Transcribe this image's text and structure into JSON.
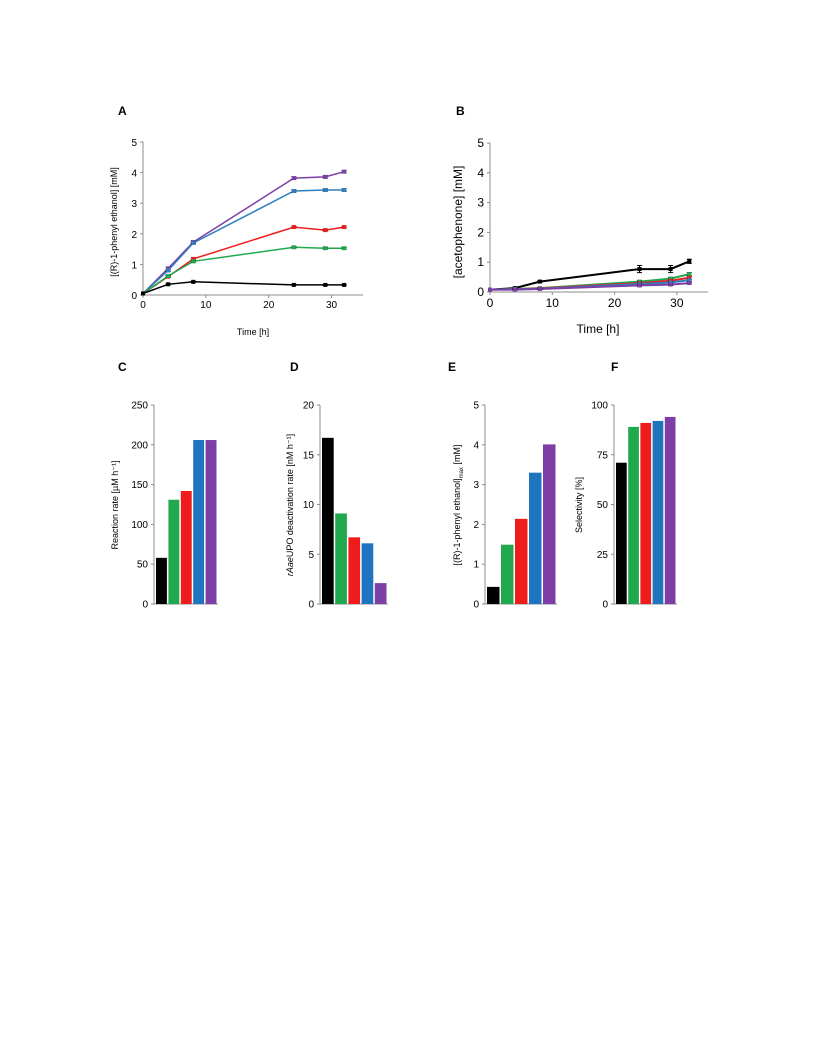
{
  "colors": {
    "black": "#000000",
    "green": "#1fa84e",
    "red": "#ee1c1c",
    "blue": "#1f74c0",
    "purple": "#7d3fa6",
    "line_blue": "#2e7fbf",
    "axis": "#8c8c8c"
  },
  "chart_data": [
    {
      "panel": "A",
      "type": "line",
      "xlabel": "Time [h]",
      "ylabel": "[(R)-1-phenyl ethanol] [mM]",
      "xlim": [
        0,
        35
      ],
      "ylim": [
        0,
        5
      ],
      "xticks": [
        "0",
        "10",
        "20",
        "30"
      ],
      "yticks": [
        "0",
        "1",
        "2",
        "3",
        "4",
        "5"
      ],
      "series": [
        {
          "color": "purple",
          "x": [
            0,
            4,
            8,
            24,
            29,
            32
          ],
          "y": [
            0.05,
            0.87,
            1.73,
            3.82,
            3.86,
            4.03
          ],
          "err": [
            0,
            0.04,
            0.04,
            0.04,
            0.04,
            0.04
          ]
        },
        {
          "color": "line_blue",
          "x": [
            0,
            4,
            8,
            24,
            29,
            32
          ],
          "y": [
            0.05,
            0.8,
            1.7,
            3.4,
            3.43,
            3.43
          ],
          "err": [
            0,
            0.03,
            0.03,
            0.04,
            0.04,
            0.04
          ]
        },
        {
          "color": "red",
          "x": [
            0,
            4,
            8,
            24,
            29,
            32
          ],
          "y": [
            0.05,
            0.6,
            1.18,
            2.22,
            2.12,
            2.22
          ],
          "err": [
            0,
            0.03,
            0.03,
            0.03,
            0.03,
            0.03
          ]
        },
        {
          "color": "green",
          "x": [
            0,
            4,
            8,
            24,
            29,
            32
          ],
          "y": [
            0.05,
            0.62,
            1.1,
            1.56,
            1.53,
            1.53
          ],
          "err": [
            0,
            0.03,
            0.03,
            0.03,
            0.03,
            0.03
          ]
        },
        {
          "color": "black",
          "x": [
            0,
            4,
            8,
            24,
            29,
            32
          ],
          "y": [
            0.05,
            0.35,
            0.43,
            0.33,
            0.33,
            0.33
          ],
          "err": [
            0,
            0.02,
            0.02,
            0.02,
            0.02,
            0.02
          ]
        }
      ]
    },
    {
      "panel": "B",
      "type": "line",
      "xlabel": "Time [h]",
      "ylabel": "[acetophenone] [mM]",
      "xlim": [
        0,
        35
      ],
      "ylim": [
        0,
        5
      ],
      "xticks": [
        "0",
        "10",
        "20",
        "30"
      ],
      "yticks": [
        "0",
        "1",
        "2",
        "3",
        "4",
        "5"
      ],
      "series": [
        {
          "color": "black",
          "x": [
            0,
            4,
            8,
            24,
            29,
            32
          ],
          "y": [
            0.08,
            0.13,
            0.35,
            0.77,
            0.77,
            1.03
          ],
          "err": [
            0,
            0.03,
            0.03,
            0.12,
            0.12,
            0.07
          ]
        },
        {
          "color": "green",
          "x": [
            0,
            4,
            8,
            24,
            29,
            32
          ],
          "y": [
            0.08,
            0.1,
            0.13,
            0.35,
            0.45,
            0.6
          ],
          "err": [
            0,
            0.02,
            0.02,
            0.03,
            0.04,
            0.05
          ]
        },
        {
          "color": "red",
          "x": [
            0,
            4,
            8,
            24,
            29,
            32
          ],
          "y": [
            0.08,
            0.09,
            0.12,
            0.3,
            0.38,
            0.48
          ],
          "err": [
            0,
            0.02,
            0.02,
            0.03,
            0.03,
            0.04
          ]
        },
        {
          "color": "line_blue",
          "x": [
            0,
            4,
            8,
            24,
            29,
            32
          ],
          "y": [
            0.08,
            0.09,
            0.11,
            0.27,
            0.32,
            0.4
          ],
          "err": [
            0,
            0.02,
            0.02,
            0.03,
            0.03,
            0.04
          ]
        },
        {
          "color": "purple",
          "x": [
            0,
            4,
            8,
            24,
            29,
            32
          ],
          "y": [
            0.08,
            0.08,
            0.1,
            0.22,
            0.25,
            0.3
          ],
          "err": [
            0,
            0.02,
            0.02,
            0.03,
            0.03,
            0.03
          ]
        }
      ]
    },
    {
      "panel": "C",
      "type": "bar",
      "ylabel": "Reaction rate [µM h⁻¹]",
      "ylim": [
        0,
        250
      ],
      "yticks": [
        "0",
        "50",
        "100",
        "150",
        "200",
        "250"
      ],
      "bar_colors": [
        "black",
        "green",
        "red",
        "blue",
        "purple"
      ],
      "values": [
        58,
        131,
        142,
        206,
        206
      ]
    },
    {
      "panel": "D",
      "type": "bar",
      "ylabel": "rAaeUPO deactivation rate [nM h⁻¹]",
      "ylim": [
        0,
        20
      ],
      "yticks": [
        "0",
        "5",
        "10",
        "15",
        "20"
      ],
      "bar_colors": [
        "black",
        "green",
        "red",
        "blue",
        "purple"
      ],
      "values": [
        16.7,
        9.1,
        6.7,
        6.1,
        2.1
      ]
    },
    {
      "panel": "E",
      "type": "bar",
      "ylabel": "[(R)-1-phenyl ethanol]max [mM]",
      "ylim": [
        0,
        5
      ],
      "yticks": [
        "0",
        "1",
        "2",
        "3",
        "4",
        "5"
      ],
      "bar_colors": [
        "black",
        "green",
        "red",
        "blue",
        "purple"
      ],
      "values": [
        0.43,
        1.49,
        2.14,
        3.3,
        4.01
      ]
    },
    {
      "panel": "F",
      "type": "bar",
      "ylabel": "Selectivity [%]",
      "ylim": [
        0,
        100
      ],
      "yticks": [
        "0",
        "25",
        "50",
        "75",
        "100"
      ],
      "bar_colors": [
        "black",
        "green",
        "red",
        "blue",
        "purple"
      ],
      "values": [
        71,
        89,
        91,
        92,
        94
      ]
    }
  ]
}
